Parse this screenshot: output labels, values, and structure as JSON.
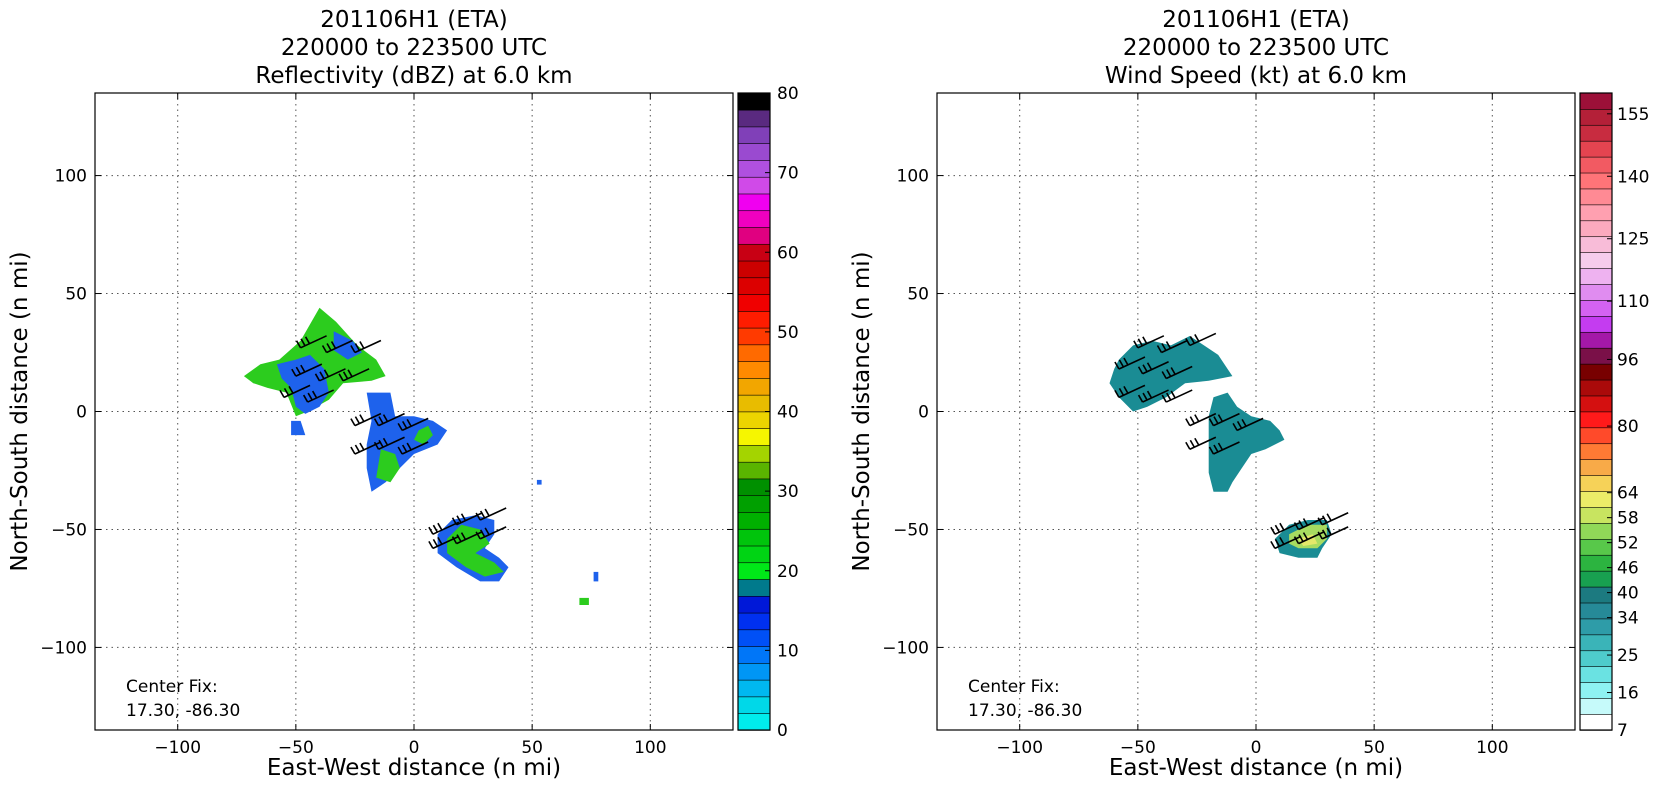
{
  "chart_data": [
    {
      "type": "heatmap",
      "title": [
        "201106H1 (ETA)",
        "220000 to 223500 UTC",
        "Reflectivity (dBZ) at 6.0 km"
      ],
      "xlabel": "East-West distance (n mi)",
      "ylabel": "North-South distance (n mi)",
      "xlim": [
        -135,
        135
      ],
      "ylim": [
        -135,
        135
      ],
      "xticks": [
        -100,
        -50,
        0,
        50,
        100
      ],
      "yticks": [
        -100,
        -50,
        0,
        50,
        100
      ],
      "xtick_labels": [
        "−100",
        "−50",
        "0",
        "50",
        "100"
      ],
      "ytick_labels": [
        "−100",
        "−50",
        "0",
        "50",
        "100"
      ],
      "grid": true,
      "annotation": [
        "Center Fix:",
        "17.30, -86.30"
      ],
      "colorbar": {
        "label_values": [
          0,
          10,
          20,
          30,
          40,
          50,
          60,
          70,
          80
        ],
        "colors": [
          "#00ecec",
          "#00d8e8",
          "#00b8f0",
          "#0096f5",
          "#0076f8",
          "#0050f6",
          "#0030f0",
          "#0018d8",
          "#007a8c",
          "#00e818",
          "#00d414",
          "#00c40c",
          "#00b000",
          "#00a000",
          "#009000",
          "#5ab400",
          "#a4d400",
          "#f6f600",
          "#ecd400",
          "#e8bc00",
          "#f2a600",
          "#ff8a00",
          "#ff6a00",
          "#ff3a00",
          "#ff1c00",
          "#f00000",
          "#dc0000",
          "#cc0000",
          "#c80014",
          "#e00080",
          "#f000c0",
          "#f000f0",
          "#d04ae8",
          "#b050e0",
          "#9a4ad0",
          "#8040b8",
          "#5a2a80",
          "#000000"
        ],
        "range": [
          0,
          80
        ]
      },
      "regions": [
        {
          "color": "#2ccc1e",
          "points": [
            [
              -72,
              15
            ],
            [
              -65,
              20
            ],
            [
              -57,
              22
            ],
            [
              -48,
              30
            ],
            [
              -40,
              44
            ],
            [
              -33,
              38
            ],
            [
              -24,
              28
            ],
            [
              -16,
              22
            ],
            [
              -12,
              15
            ],
            [
              -18,
              13
            ],
            [
              -30,
              12
            ],
            [
              -36,
              5
            ],
            [
              -45,
              0
            ],
            [
              -50,
              -2
            ],
            [
              -54,
              8
            ],
            [
              -62,
              10
            ],
            [
              -68,
              12
            ]
          ]
        },
        {
          "color": "#1e62ec",
          "points": [
            [
              -58,
              20
            ],
            [
              -50,
              22
            ],
            [
              -44,
              24
            ],
            [
              -38,
              18
            ],
            [
              -36,
              8
            ],
            [
              -40,
              2
            ],
            [
              -46,
              -1
            ],
            [
              -50,
              2
            ],
            [
              -52,
              10
            ],
            [
              -56,
              14
            ]
          ]
        },
        {
          "color": "#1e62ec",
          "points": [
            [
              -34,
              34
            ],
            [
              -26,
              30
            ],
            [
              -22,
              25
            ],
            [
              -28,
              22
            ],
            [
              -34,
              26
            ]
          ]
        },
        {
          "color": "#1e62ec",
          "points": [
            [
              -20,
              8
            ],
            [
              -10,
              8
            ],
            [
              -8,
              -2
            ],
            [
              0,
              -2
            ],
            [
              8,
              -4
            ],
            [
              14,
              -8
            ],
            [
              10,
              -14
            ],
            [
              0,
              -18
            ],
            [
              -6,
              -24
            ],
            [
              -12,
              -30
            ],
            [
              -18,
              -34
            ],
            [
              -20,
              -24
            ],
            [
              -20,
              -14
            ],
            [
              -18,
              -4
            ]
          ]
        },
        {
          "color": "#2ccc1e",
          "points": [
            [
              -14,
              -16
            ],
            [
              -8,
              -18
            ],
            [
              -6,
              -24
            ],
            [
              -10,
              -30
            ],
            [
              -16,
              -28
            ]
          ]
        },
        {
          "color": "#2ccc1e",
          "points": [
            [
              2,
              -8
            ],
            [
              6,
              -6
            ],
            [
              8,
              -10
            ],
            [
              4,
              -14
            ],
            [
              0,
              -12
            ]
          ]
        },
        {
          "color": "#1e62ec",
          "points": [
            [
              -52,
              -4
            ],
            [
              -48,
              -4
            ],
            [
              -46,
              -10
            ],
            [
              -52,
              -10
            ]
          ]
        },
        {
          "color": "#1e62ec",
          "points": [
            [
              10,
              -52
            ],
            [
              16,
              -46
            ],
            [
              26,
              -44
            ],
            [
              34,
              -46
            ],
            [
              34,
              -52
            ],
            [
              30,
              -58
            ],
            [
              36,
              -62
            ],
            [
              40,
              -66
            ],
            [
              36,
              -72
            ],
            [
              28,
              -72
            ],
            [
              18,
              -66
            ],
            [
              10,
              -60
            ]
          ]
        },
        {
          "color": "#2ccc1e",
          "points": [
            [
              14,
              -54
            ],
            [
              20,
              -48
            ],
            [
              28,
              -50
            ],
            [
              32,
              -56
            ],
            [
              26,
              -60
            ],
            [
              34,
              -64
            ],
            [
              38,
              -68
            ],
            [
              30,
              -70
            ],
            [
              22,
              -66
            ],
            [
              14,
              -60
            ]
          ]
        },
        {
          "color": "#1e62ec",
          "points": [
            [
              52,
              -29
            ],
            [
              54,
              -29
            ],
            [
              54,
              -31
            ],
            [
              52,
              -31
            ]
          ]
        },
        {
          "color": "#1e62ec",
          "points": [
            [
              76,
              -68
            ],
            [
              78,
              -68
            ],
            [
              78,
              -72
            ],
            [
              76,
              -72
            ]
          ]
        },
        {
          "color": "#2ccc1e",
          "points": [
            [
              70,
              -79
            ],
            [
              74,
              -79
            ],
            [
              74,
              -82
            ],
            [
              70,
              -82
            ]
          ]
        }
      ],
      "wind_barbs": [
        [
          -48,
          27
        ],
        [
          -37,
          25
        ],
        [
          -25,
          25
        ],
        [
          -50,
          15
        ],
        [
          -40,
          13
        ],
        [
          -30,
          13
        ],
        [
          -55,
          6
        ],
        [
          -45,
          4
        ],
        [
          -25,
          -6
        ],
        [
          -15,
          -6
        ],
        [
          -5,
          -8
        ],
        [
          -25,
          -18
        ],
        [
          -15,
          -16
        ],
        [
          -5,
          -18
        ],
        [
          8,
          -52
        ],
        [
          18,
          -48
        ],
        [
          28,
          -46
        ],
        [
          8,
          -58
        ],
        [
          18,
          -56
        ],
        [
          28,
          -54
        ]
      ]
    },
    {
      "type": "heatmap",
      "title": [
        "201106H1 (ETA)",
        "220000 to 223500 UTC",
        "Wind Speed (kt) at 6.0 km"
      ],
      "xlabel": "East-West distance (n mi)",
      "ylabel": "North-South distance (n mi)",
      "xlim": [
        -135,
        135
      ],
      "ylim": [
        -135,
        135
      ],
      "xticks": [
        -100,
        -50,
        0,
        50,
        100
      ],
      "yticks": [
        -100,
        -50,
        0,
        50,
        100
      ],
      "xtick_labels": [
        "−100",
        "−50",
        "0",
        "50",
        "100"
      ],
      "ytick_labels": [
        "−100",
        "−50",
        "0",
        "50",
        "100"
      ],
      "grid": true,
      "annotation": [
        "Center Fix:",
        "17.30, -86.30"
      ],
      "colorbar": {
        "label_values": [
          7,
          16,
          25,
          34,
          40,
          46,
          52,
          58,
          64,
          80,
          96,
          110,
          125,
          140,
          155
        ],
        "colors": [
          "#ffffff",
          "#c6fafa",
          "#8ef2f2",
          "#6ae2e2",
          "#4ecccc",
          "#3ab4b8",
          "#2e9ca8",
          "#268a98",
          "#1c7a80",
          "#18a050",
          "#2cb440",
          "#58c84a",
          "#90d858",
          "#c8e460",
          "#ecec68",
          "#f6d258",
          "#f8aa48",
          "#ff7a34",
          "#ff4a2a",
          "#ff1a1a",
          "#d41010",
          "#aa0a0a",
          "#780000",
          "#7a1048",
          "#a418a8",
          "#c43cf0",
          "#d462f2",
          "#e08cf0",
          "#eeb2f0",
          "#f6ccec",
          "#f8bcd8",
          "#fcaabe",
          "#ffa0b0",
          "#ff8a94",
          "#ff7478",
          "#f25a62",
          "#e44450",
          "#c82c40",
          "#b42038",
          "#9c1038"
        ],
        "range": [
          7,
          160
        ]
      },
      "regions": [
        {
          "color": "#1a8c94",
          "points": [
            [
              -58,
              22
            ],
            [
              -52,
              28
            ],
            [
              -44,
              30
            ],
            [
              -36,
              28
            ],
            [
              -28,
              32
            ],
            [
              -22,
              28
            ],
            [
              -16,
              24
            ],
            [
              -12,
              18
            ],
            [
              -10,
              15
            ],
            [
              -20,
              13
            ],
            [
              -30,
              12
            ],
            [
              -38,
              6
            ],
            [
              -46,
              2
            ],
            [
              -52,
              0
            ],
            [
              -58,
              6
            ],
            [
              -62,
              12
            ],
            [
              -60,
              18
            ]
          ]
        },
        {
          "color": "#1a8c94",
          "points": [
            [
              -18,
              6
            ],
            [
              -12,
              8
            ],
            [
              -8,
              2
            ],
            [
              -2,
              -2
            ],
            [
              6,
              -4
            ],
            [
              10,
              -8
            ],
            [
              12,
              -12
            ],
            [
              4,
              -16
            ],
            [
              -2,
              -18
            ],
            [
              -6,
              -24
            ],
            [
              -10,
              -30
            ],
            [
              -12,
              -34
            ],
            [
              -18,
              -34
            ],
            [
              -20,
              -26
            ],
            [
              -20,
              -14
            ],
            [
              -20,
              -2
            ]
          ]
        },
        {
          "color": "#1a8c94",
          "points": [
            [
              8,
              -54
            ],
            [
              14,
              -48
            ],
            [
              22,
              -46
            ],
            [
              30,
              -46
            ],
            [
              32,
              -52
            ],
            [
              28,
              -58
            ],
            [
              26,
              -62
            ],
            [
              18,
              -62
            ],
            [
              10,
              -60
            ]
          ]
        },
        {
          "color": "#a8dc60",
          "points": [
            [
              14,
              -52
            ],
            [
              22,
              -48
            ],
            [
              30,
              -48
            ],
            [
              30,
              -54
            ],
            [
              26,
              -58
            ],
            [
              18,
              -58
            ],
            [
              14,
              -56
            ]
          ]
        },
        {
          "color": "#e4e86a",
          "points": [
            [
              18,
              -54
            ],
            [
              24,
              -52
            ],
            [
              26,
              -56
            ],
            [
              20,
              -57
            ]
          ]
        }
      ],
      "wind_barbs": [
        [
          -50,
          27
        ],
        [
          -40,
          25
        ],
        [
          -28,
          28
        ],
        [
          -58,
          18
        ],
        [
          -48,
          16
        ],
        [
          -38,
          14
        ],
        [
          -58,
          6
        ],
        [
          -48,
          4
        ],
        [
          -38,
          4
        ],
        [
          -28,
          -6
        ],
        [
          -18,
          -6
        ],
        [
          -8,
          -8
        ],
        [
          -28,
          -16
        ],
        [
          -18,
          -18
        ],
        [
          8,
          -52
        ],
        [
          18,
          -50
        ],
        [
          28,
          -48
        ],
        [
          8,
          -58
        ],
        [
          18,
          -56
        ],
        [
          28,
          -54
        ]
      ]
    }
  ]
}
